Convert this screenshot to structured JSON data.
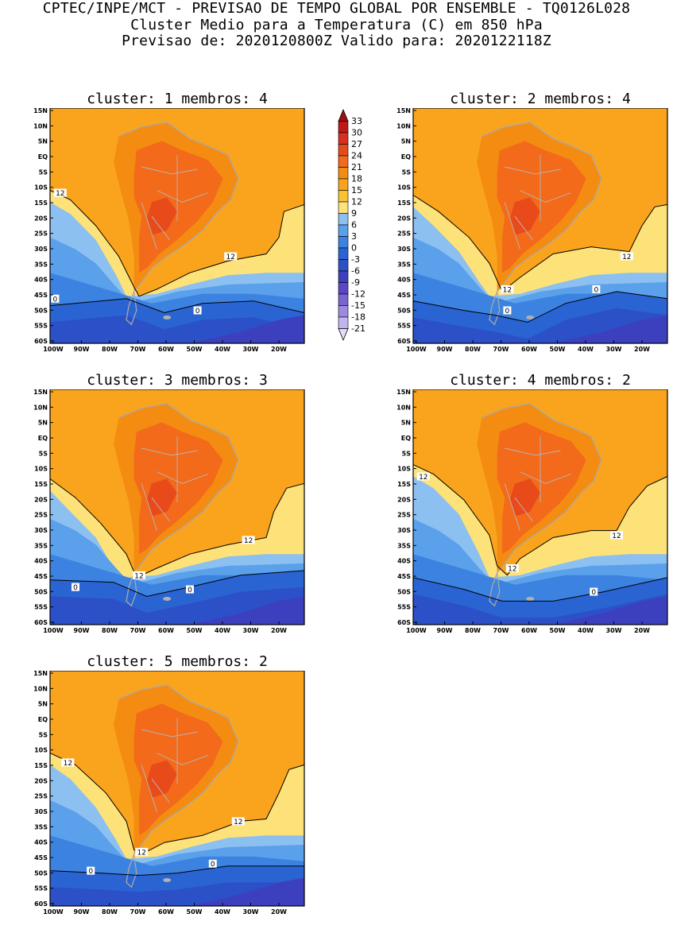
{
  "header": {
    "line1": "CPTEC/INPE/MCT - PREVISAO DE TEMPO GLOBAL POR ENSEMBLE - TQ0126L028",
    "line2": "Cluster Medio para a Temperatura (C) em 850 hPa",
    "line3": "Previsao de: 2020120800Z   Valido para: 2020122118Z"
  },
  "axes": {
    "lat_labels": [
      "15N",
      "10N",
      "5N",
      "EQ",
      "5S",
      "10S",
      "15S",
      "20S",
      "25S",
      "30S",
      "35S",
      "40S",
      "45S",
      "50S",
      "55S",
      "60S"
    ],
    "lon_labels": [
      "100W",
      "90W",
      "80W",
      "70W",
      "60W",
      "50W",
      "40W",
      "30W",
      "20W"
    ]
  },
  "colorbar": {
    "levels": [
      "33",
      "30",
      "27",
      "24",
      "21",
      "18",
      "15",
      "12",
      "9",
      "6",
      "3",
      "0",
      "-3",
      "-6",
      "-9",
      "-12",
      "-15",
      "-18",
      "-21"
    ],
    "colors": [
      "#a01010",
      "#c01818",
      "#d83020",
      "#e84a1a",
      "#f26a1a",
      "#f58c12",
      "#faa41e",
      "#fac232",
      "#fde27a",
      "#8cc0f0",
      "#5aa0ea",
      "#3c82e0",
      "#2a64d2",
      "#2c50c8",
      "#3c40be",
      "#5c46c8",
      "#7a64d2",
      "#9c8ae0",
      "#c2b4ee",
      "#e4dcf8"
    ]
  },
  "panels": [
    {
      "title": "cluster: 1   membros: 4",
      "labels": [
        "12",
        "12",
        "0",
        "0"
      ]
    },
    {
      "title": "cluster: 2   membros: 4",
      "labels": [
        "12",
        "12",
        "0",
        "0"
      ]
    },
    {
      "title": "cluster: 3   membros: 3",
      "labels": [
        "12",
        "12",
        "0",
        "0"
      ]
    },
    {
      "title": "cluster: 4   membros: 2",
      "labels": [
        "12",
        "12",
        "12",
        "0"
      ]
    },
    {
      "title": "cluster: 5   membros: 2",
      "labels": [
        "12",
        "12",
        "12",
        "0",
        "0"
      ]
    }
  ]
}
